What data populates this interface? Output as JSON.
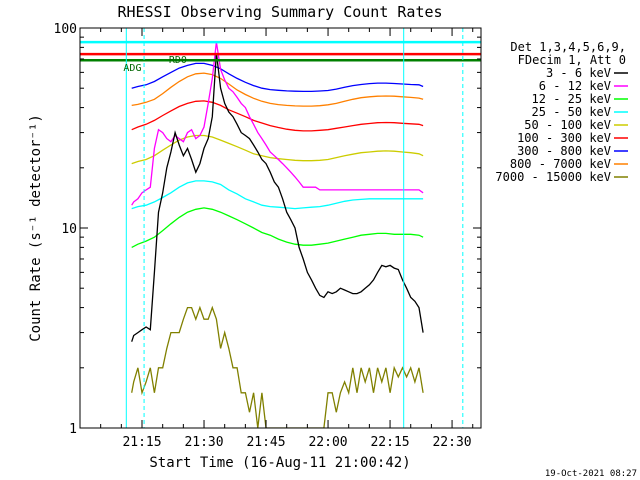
{
  "chart_data": {
    "type": "line",
    "title": "RHESSI Observing Summary Count Rates",
    "xlabel": "Start Time (16-Aug-11 21:00:42)",
    "ylabel": "Count Rate (s⁻¹ detector⁻¹)",
    "yscale": "log",
    "ylim": [
      1,
      100
    ],
    "xlim_minutes": [
      0,
      97
    ],
    "x_ticks": [
      {
        "t": 15,
        "label": "21:15"
      },
      {
        "t": 30,
        "label": "21:30"
      },
      {
        "t": 45,
        "label": "21:45"
      },
      {
        "t": 60,
        "label": "22:00"
      },
      {
        "t": 75,
        "label": "22:15"
      },
      {
        "t": 90,
        "label": "22:30"
      }
    ],
    "y_ticks": [
      {
        "v": 1,
        "label": "1"
      },
      {
        "v": 10,
        "label": "10"
      },
      {
        "v": 100,
        "label": "100"
      }
    ],
    "legend_header": [
      "Det 1,3,4,5,6,9,",
      "FDecim 1, Att 0"
    ],
    "legend_position": "top-right, outside plot",
    "footer_date": "19-Oct-2021 08:27",
    "annotations": [
      {
        "text": "RD0",
        "t": 21.5,
        "v": 67
      },
      {
        "text": "ADG",
        "t": 10.5,
        "v": 61
      }
    ],
    "reference_lines": [
      {
        "color": "#00ffff",
        "v": 85
      },
      {
        "color": "#ff0000",
        "v": 74
      },
      {
        "color": "#008000",
        "v": 69
      }
    ],
    "vertical_markers": [
      {
        "t": 11.2,
        "color": "#00ffff",
        "style": "solid"
      },
      {
        "t": 15.5,
        "color": "#00ffff",
        "style": "dashed"
      },
      {
        "t": 78.3,
        "color": "#00ffff",
        "style": "solid"
      },
      {
        "t": 92.6,
        "color": "#00ffff",
        "style": "dashed"
      }
    ],
    "series": [
      {
        "name": "3 - 6 keV",
        "color": "#000000",
        "segments": [
          {
            "t": [
              12.5,
              13,
              14,
              15,
              16,
              17,
              18,
              19,
              20,
              21,
              22,
              23,
              24,
              25,
              26,
              27,
              28,
              29,
              30,
              31,
              32,
              33,
              34,
              35,
              36,
              37,
              38,
              39,
              40,
              41,
              42,
              43,
              44,
              45,
              46,
              47,
              48,
              49,
              50,
              51,
              52,
              53,
              54,
              55,
              56,
              57,
              58,
              59,
              60,
              61,
              62,
              63,
              64,
              65,
              66,
              67,
              68,
              69,
              70,
              71,
              72,
              73,
              74,
              75,
              76,
              77,
              78,
              79,
              80,
              81,
              82,
              83
            ],
            "v": [
              2.7,
              2.9,
              3,
              3.1,
              3.2,
              3.1,
              6,
              12,
              15,
              20,
              24,
              30,
              26,
              23,
              25,
              22,
              19,
              21,
              25,
              28,
              36,
              75,
              50,
              42,
              38,
              36,
              33,
              30,
              29,
              28,
              26,
              24,
              22,
              21,
              19,
              17,
              16,
              14,
              12,
              11,
              10,
              8,
              7,
              6,
              5.5,
              5,
              4.6,
              4.5,
              4.8,
              4.7,
              4.8,
              5,
              4.9,
              4.8,
              4.7,
              4.7,
              4.8,
              5,
              5.2,
              5.5,
              6,
              6.5,
              6.4,
              6.5,
              6.3,
              6.2,
              5.5,
              5,
              4.5,
              4.3,
              4,
              3
            ]
          }
        ]
      },
      {
        "name": "6 - 12 keV",
        "color": "#ff00ff",
        "segments": [
          {
            "t": [
              12.5,
              13,
              14,
              15,
              16,
              17,
              18,
              19,
              20,
              21,
              22,
              23,
              24,
              25,
              26,
              27,
              28,
              29,
              30,
              31,
              32,
              33,
              34,
              35,
              36,
              37,
              38,
              39,
              40,
              41,
              42,
              43,
              44,
              45,
              46,
              47,
              48,
              49,
              50,
              51,
              52,
              53,
              54,
              55,
              56,
              57,
              58,
              59,
              60,
              61,
              62,
              63,
              64,
              65,
              66,
              67,
              68,
              69,
              70,
              71,
              72,
              73,
              74,
              75,
              76,
              77,
              78,
              79,
              80,
              81,
              82,
              83
            ],
            "v": [
              13,
              13.5,
              14,
              15,
              15.5,
              16,
              25,
              31,
              30,
              28,
              27,
              29,
              28,
              27,
              30,
              31,
              28,
              29,
              32,
              42,
              56,
              85,
              62,
              55,
              50,
              48,
              45,
              42,
              40,
              36,
              33,
              30,
              28,
              26,
              24,
              23,
              22,
              21,
              20,
              19,
              18,
              17,
              16,
              16,
              16,
              16,
              15.5,
              15.5,
              15.5,
              15.5,
              15.5,
              15.5,
              15.5,
              15.5,
              15.5,
              15.5,
              15.5,
              15.5,
              15.5,
              15.5,
              15.5,
              15.5,
              15.5,
              15.5,
              15.5,
              15.5,
              15.5,
              15.5,
              15.5,
              15.5,
              15.5,
              15
            ]
          }
        ]
      },
      {
        "name": "12 - 25 keV",
        "color": "#00ff00",
        "segments": [
          {
            "t": [
              12.5,
              14,
              16,
              18,
              20,
              22,
              24,
              26,
              28,
              30,
              32,
              34,
              36,
              38,
              40,
              42,
              44,
              46,
              48,
              50,
              52,
              54,
              56,
              58,
              60,
              62,
              64,
              66,
              68,
              70,
              72,
              74,
              76,
              78,
              80,
              82,
              83
            ],
            "v": [
              8,
              8.3,
              8.6,
              9,
              9.7,
              10.5,
              11.3,
              12,
              12.4,
              12.6,
              12.4,
              12,
              11.5,
              11,
              10.5,
              10,
              9.5,
              9.2,
              8.8,
              8.5,
              8.3,
              8.2,
              8.2,
              8.3,
              8.4,
              8.6,
              8.8,
              9,
              9.2,
              9.3,
              9.4,
              9.4,
              9.3,
              9.3,
              9.3,
              9.2,
              9
            ]
          }
        ]
      },
      {
        "name": "25 - 50 keV",
        "color": "#00ffff",
        "segments": [
          {
            "t": [
              12.5,
              14,
              16,
              18,
              20,
              22,
              24,
              26,
              28,
              30,
              32,
              34,
              36,
              38,
              40,
              42,
              44,
              46,
              48,
              50,
              52,
              54,
              56,
              58,
              60,
              62,
              64,
              66,
              68,
              70,
              72,
              74,
              76,
              78,
              80,
              82,
              83
            ],
            "v": [
              12.5,
              12.8,
              13,
              13.5,
              14.2,
              15,
              16,
              16.8,
              17.2,
              17.2,
              17,
              16.5,
              15.5,
              14.8,
              14,
              13.5,
              13,
              12.8,
              12.7,
              12.6,
              12.5,
              12.6,
              12.7,
              12.8,
              13,
              13.3,
              13.6,
              13.8,
              13.9,
              14,
              14,
              14,
              14,
              14,
              14,
              14,
              14
            ]
          }
        ]
      },
      {
        "name": "50 - 100 keV",
        "color": "#cccc00",
        "segments": [
          {
            "t": [
              12.5,
              14,
              16,
              18,
              20,
              22,
              24,
              26,
              28,
              30,
              32,
              34,
              36,
              38,
              40,
              42,
              44,
              46,
              48,
              50,
              52,
              54,
              56,
              58,
              60,
              62,
              64,
              66,
              68,
              70,
              72,
              74,
              76,
              78,
              80,
              82,
              83
            ],
            "v": [
              21,
              21.5,
              22,
              23,
              24.5,
              26,
              27.5,
              28.5,
              29,
              29,
              28.5,
              27.5,
              26.5,
              25.5,
              24.5,
              23.5,
              23,
              22.5,
              22.2,
              22,
              21.8,
              21.7,
              21.7,
              21.8,
              22,
              22.5,
              23,
              23.4,
              23.8,
              24,
              24.2,
              24.3,
              24.2,
              24,
              23.8,
              23.5,
              23
            ]
          }
        ]
      },
      {
        "name": "100 - 300 keV",
        "color": "#ff0000",
        "segments": [
          {
            "t": [
              12.5,
              14,
              16,
              18,
              20,
              22,
              24,
              26,
              28,
              30,
              32,
              34,
              36,
              38,
              40,
              42,
              44,
              46,
              48,
              50,
              52,
              54,
              56,
              58,
              60,
              62,
              64,
              66,
              68,
              70,
              72,
              74,
              76,
              78,
              80,
              82,
              83
            ],
            "v": [
              31,
              32,
              33,
              34.5,
              36.5,
              38.5,
              40.5,
              42,
              43,
              43.2,
              42.5,
              41,
              39,
              37.5,
              36,
              34.5,
              33.5,
              32.5,
              31.8,
              31.2,
              30.8,
              30.6,
              30.6,
              30.8,
              31,
              31.5,
              32,
              32.5,
              33,
              33.3,
              33.6,
              33.7,
              33.6,
              33.4,
              33.2,
              33,
              32.5
            ]
          }
        ]
      },
      {
        "name": "300 - 800 keV",
        "color": "#0000ff",
        "segments": [
          {
            "t": [
              12.5,
              14,
              16,
              18,
              20,
              22,
              24,
              26,
              28,
              30,
              32,
              34,
              36,
              38,
              40,
              42,
              44,
              46,
              48,
              50,
              52,
              54,
              56,
              58,
              60,
              62,
              64,
              66,
              68,
              70,
              72,
              74,
              76,
              78,
              80,
              82,
              83
            ],
            "v": [
              50,
              51,
              52,
              54,
              57,
              60,
              63,
              65,
              66.5,
              66.5,
              65,
              62.5,
              59,
              56,
              53.5,
              51.5,
              50,
              49.2,
              48.8,
              48.5,
              48.3,
              48.2,
              48.2,
              48.4,
              48.7,
              49.5,
              50.5,
              51.5,
              52.2,
              52.7,
              53,
              53,
              52.8,
              52.5,
              52.2,
              52,
              51
            ]
          }
        ]
      },
      {
        "name": "800 - 7000 keV",
        "color": "#ff8000",
        "segments": [
          {
            "t": [
              12.5,
              14,
              16,
              18,
              20,
              22,
              24,
              26,
              28,
              30,
              32,
              34,
              36,
              38,
              40,
              42,
              44,
              46,
              48,
              50,
              52,
              54,
              56,
              58,
              60,
              62,
              64,
              66,
              68,
              70,
              72,
              74,
              76,
              78,
              80,
              82,
              83
            ],
            "v": [
              41,
              41.5,
              42.5,
              44,
              47,
              50.5,
              54,
              57,
              59,
              59.5,
              58.5,
              56,
              52.5,
              49,
              46.5,
              44.5,
              43,
              42,
              41.4,
              41,
              40.8,
              40.7,
              40.7,
              40.9,
              41.3,
              42,
              43,
              44,
              44.8,
              45.3,
              45.6,
              45.7,
              45.6,
              45.3,
              45,
              44.6,
              44
            ]
          }
        ]
      },
      {
        "name": "7000 - 15000 keV",
        "color": "#808000",
        "segments": [
          {
            "t": [
              12.5,
              13,
              14,
              15,
              16,
              17,
              18,
              19,
              20,
              21,
              22,
              23,
              24,
              25,
              26,
              27,
              28,
              29,
              30,
              31,
              32,
              33,
              34,
              35,
              36,
              37,
              38,
              39,
              40,
              41,
              42,
              43,
              44,
              45,
              46,
              47,
              48,
              49,
              50,
              51,
              52,
              53,
              54,
              55,
              56,
              57,
              58,
              59,
              60,
              61,
              62,
              63,
              64,
              65,
              66,
              67,
              68,
              69,
              70,
              71,
              72,
              73,
              74,
              75,
              76,
              77,
              78,
              79,
              80,
              81,
              82,
              83
            ],
            "v": [
              1.5,
              1.7,
              2,
              1.5,
              1.7,
              2,
              1.5,
              2,
              2,
              2.5,
              3,
              3,
              3,
              3.5,
              4,
              4,
              3.5,
              4,
              3.5,
              3.5,
              4,
              3.5,
              2.5,
              3,
              2.5,
              2,
              2,
              1.5,
              1.5,
              1.2,
              1.5,
              1,
              1.5,
              1,
              1,
              1,
              1,
              1,
              1,
              1,
              1,
              1,
              1,
              1,
              1,
              1,
              1,
              1,
              1.5,
              1.5,
              1.2,
              1.5,
              1.7,
              1.5,
              2,
              1.5,
              2,
              1.7,
              2,
              1.5,
              2,
              1.7,
              2,
              1.5,
              2,
              1.8,
              2,
              1.8,
              2,
              1.7,
              2,
              1.5
            ]
          }
        ]
      }
    ]
  }
}
